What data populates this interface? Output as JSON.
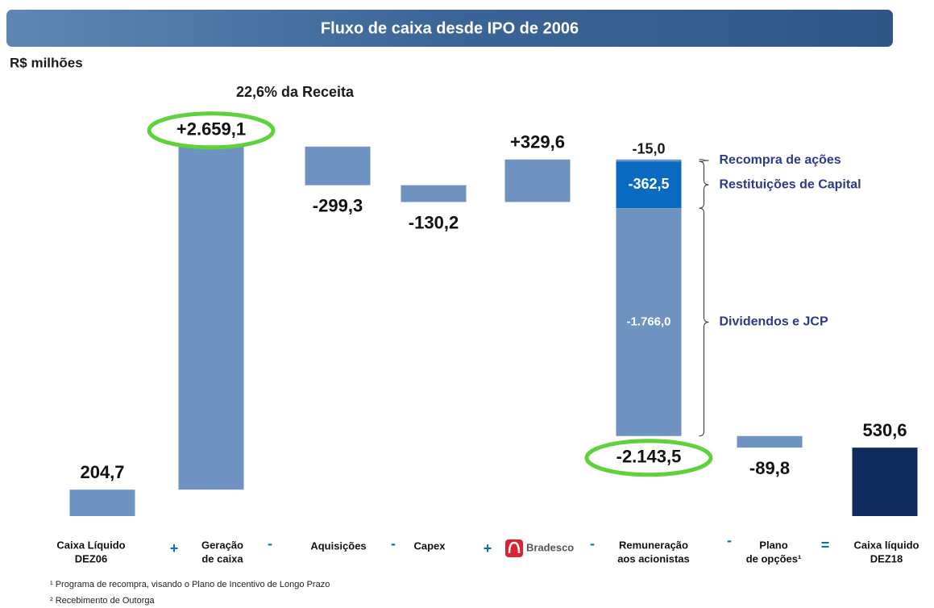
{
  "chart_data": {
    "type": "waterfall",
    "title": "Fluxo de caixa desde IPO de 2006",
    "unit_label": "R$ milhões",
    "annotation": "22,6% da Receita",
    "steps": [
      {
        "label": [
          "Caixa Líquido",
          "DEZ06"
        ],
        "value": 204.7,
        "value_label": "204,7",
        "kind": "total",
        "color": "#6f93c1"
      },
      {
        "label": [
          "Geração",
          "de caixa"
        ],
        "value": 2659.1,
        "value_label": "+2.659,1",
        "kind": "delta",
        "color": "#6f93c1",
        "highlight": true
      },
      {
        "label": [
          "Aquisições"
        ],
        "value": -299.3,
        "value_label": "-299,3",
        "kind": "delta",
        "color": "#6f93c1"
      },
      {
        "label": [
          "Capex"
        ],
        "value": -130.2,
        "value_label": "-130,2",
        "kind": "delta",
        "color": "#6f93c1"
      },
      {
        "label": [
          "Bradesco"
        ],
        "value": 329.6,
        "value_label": "+329,6",
        "kind": "delta",
        "color": "#6f93c1",
        "logo": true
      },
      {
        "label": [
          "Remuneração",
          "aos acionistas"
        ],
        "value": -2143.5,
        "value_label": "-2.143,5",
        "kind": "delta",
        "highlight": true,
        "segments": [
          {
            "name": "Recompra de ações",
            "value": -15.0,
            "value_label": "-15,0",
            "color": "#6f93c1"
          },
          {
            "name": "Restituições de Capital",
            "value": -362.5,
            "value_label": "-362,5",
            "color": "#0a6abf"
          },
          {
            "name": "Dividendos e JCP",
            "value": -1766.0,
            "value_label": "-1.766,0",
            "color": "#6f93c1"
          }
        ]
      },
      {
        "label": [
          "Plano",
          "de opções¹"
        ],
        "value": -89.8,
        "value_label": "-89,8",
        "kind": "delta",
        "color": "#6f93c1"
      },
      {
        "label": [
          "Caixa líquido",
          "DEZ18"
        ],
        "value": 530.6,
        "value_label": "530,6",
        "kind": "total",
        "color": "#0f2a5c"
      }
    ],
    "operators": [
      "+",
      "-",
      "-",
      "+",
      "-",
      "-",
      "="
    ],
    "footnotes": [
      "¹ Programa de recompra, visando o Plano de Incentivo de Longo Prazo",
      "² Recebimento de Outorga"
    ]
  }
}
